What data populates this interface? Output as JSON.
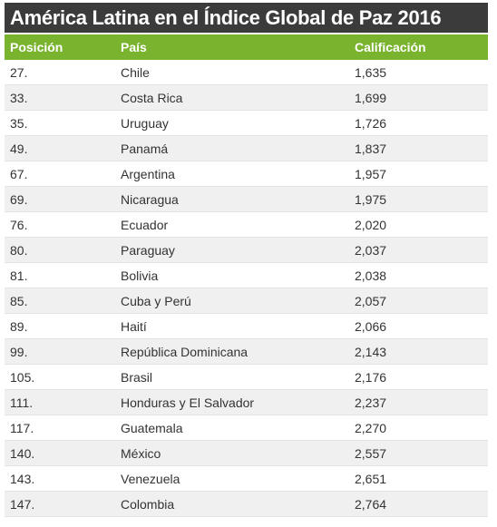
{
  "title": "América Latina en el Índice Global de Paz 2016",
  "headers": {
    "position": "Posición",
    "country": "País",
    "score": "Calificación"
  },
  "colors": {
    "title_bg": "#3b3b3b",
    "header_bg": "#7ab32e",
    "stripe_bg": "#f0f0f0"
  },
  "rows": [
    {
      "position": "27.",
      "country": "Chile",
      "score": "1,635"
    },
    {
      "position": "33.",
      "country": "Costa Rica",
      "score": "1,699"
    },
    {
      "position": "35.",
      "country": "Uruguay",
      "score": "1,726"
    },
    {
      "position": "49.",
      "country": "Panamá",
      "score": "1,837"
    },
    {
      "position": "67.",
      "country": "Argentina",
      "score": "1,957"
    },
    {
      "position": "69.",
      "country": "Nicaragua",
      "score": "1,975"
    },
    {
      "position": "76.",
      "country": "Ecuador",
      "score": "2,020"
    },
    {
      "position": "80.",
      "country": "Paraguay",
      "score": "2,037"
    },
    {
      "position": "81.",
      "country": "Bolivia",
      "score": "2,038"
    },
    {
      "position": "85.",
      "country": "Cuba y Perú",
      "score": "2,057"
    },
    {
      "position": "89.",
      "country": "Haití",
      "score": "2,066"
    },
    {
      "position": "99.",
      "country": "República Dominicana",
      "score": "2,143"
    },
    {
      "position": "105.",
      "country": "Brasil",
      "score": "2,176"
    },
    {
      "position": "111.",
      "country": "Honduras y El Salvador",
      "score": "2,237"
    },
    {
      "position": "117.",
      "country": "Guatemala",
      "score": "2,270"
    },
    {
      "position": "140.",
      "country": "México",
      "score": "2,557"
    },
    {
      "position": "143.",
      "country": "Venezuela",
      "score": "2,651"
    },
    {
      "position": "147.",
      "country": "Colombia",
      "score": "2,764"
    }
  ]
}
